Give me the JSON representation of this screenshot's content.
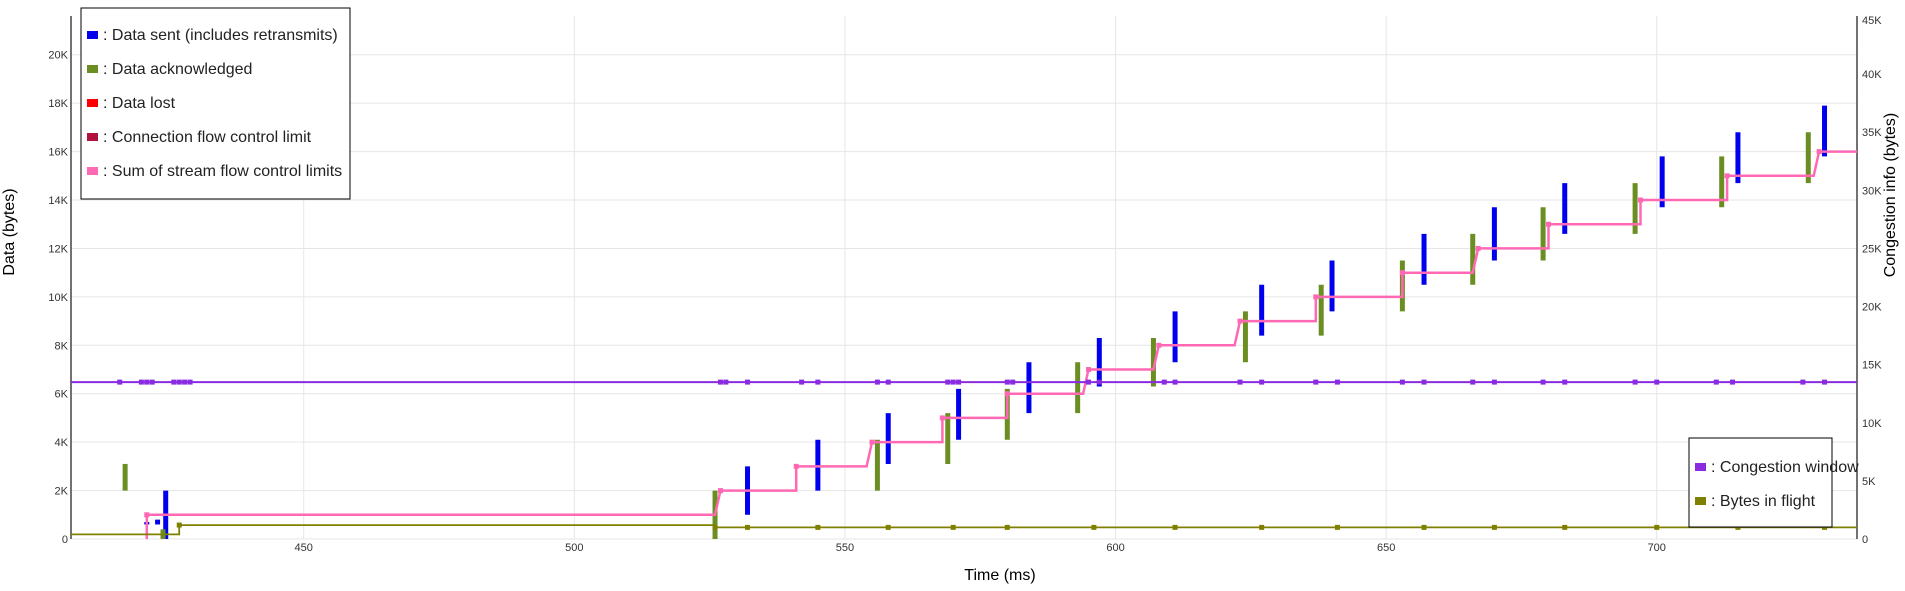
{
  "chart_data": {
    "type": "scatter",
    "xlabel": "Time (ms)",
    "ylabel": "Data (bytes)",
    "y2label": "Congestion info (bytes)",
    "xlim": [
      407,
      737
    ],
    "ylim": [
      0,
      21600
    ],
    "y2lim": [
      0,
      45000
    ],
    "x_ticks": [
      450,
      500,
      550,
      600,
      650,
      700
    ],
    "y_ticks": [
      0,
      2000,
      4000,
      6000,
      8000,
      10000,
      12000,
      14000,
      16000,
      18000,
      20000
    ],
    "y_tick_labels": [
      "0",
      "2K",
      "4K",
      "6K",
      "8K",
      "10K",
      "12K",
      "14K",
      "16K",
      "18K",
      "20K"
    ],
    "y2_ticks": [
      0,
      5000,
      10000,
      15000,
      20000,
      25000,
      30000,
      35000,
      40000,
      45000
    ],
    "y2_tick_labels": [
      "0",
      "5K",
      "10K",
      "15K",
      "20K",
      "25K",
      "30K",
      "35K",
      "40K",
      "45K"
    ],
    "grid": true,
    "legend": {
      "placement": "top-left",
      "entries": [
        {
          "label": ": Data sent (includes retransmits)",
          "color": "#0000ee"
        },
        {
          "label": ": Data acknowledged",
          "color": "#6b8e23"
        },
        {
          "label": ": Data lost",
          "color": "#ff0000"
        },
        {
          "label": ": Connection flow control limit",
          "color": "#b0143c"
        },
        {
          "label": ": Sum of stream flow control limits",
          "color": "#ff69b4"
        }
      ]
    },
    "legend2": {
      "placement": "bottom-right",
      "entries": [
        {
          "label": ": Congestion window",
          "color": "#8a2be2"
        },
        {
          "label": ": Bytes in flight",
          "color": "#808000"
        }
      ]
    },
    "series": [
      {
        "name": ": Data sent (includes retransmits)",
        "axis": "left",
        "color": "#0000ee",
        "style": "segments",
        "points": [
          [
            421,
            600,
            700
          ],
          [
            423,
            600,
            800
          ],
          [
            424.5,
            0,
            2000
          ],
          [
            532,
            1000,
            3000
          ],
          [
            545,
            2000,
            4100
          ],
          [
            558,
            3100,
            5200
          ],
          [
            571,
            4100,
            6200
          ],
          [
            584,
            5200,
            7300
          ],
          [
            597,
            6300,
            8300
          ],
          [
            611,
            7300,
            9400
          ],
          [
            627,
            8400,
            10500
          ],
          [
            640,
            9400,
            11500
          ],
          [
            657,
            10500,
            12600
          ],
          [
            670,
            11500,
            13700
          ],
          [
            683,
            12600,
            14700
          ],
          [
            701,
            13700,
            15800
          ],
          [
            715,
            14700,
            16800
          ],
          [
            731,
            15800,
            17900
          ]
        ]
      },
      {
        "name": ": Data acknowledged",
        "axis": "left",
        "color": "#6b8e23",
        "style": "segments",
        "points": [
          [
            417,
            2000,
            3100
          ],
          [
            424,
            0,
            400
          ],
          [
            526,
            0,
            2000
          ],
          [
            556,
            2000,
            4100
          ],
          [
            569,
            3100,
            5200
          ],
          [
            580,
            4100,
            6200
          ],
          [
            593,
            5200,
            7300
          ],
          [
            607,
            6300,
            8300
          ],
          [
            624,
            7300,
            9400
          ],
          [
            638,
            8400,
            10500
          ],
          [
            653,
            9400,
            11500
          ],
          [
            666,
            10500,
            12600
          ],
          [
            679,
            11500,
            13700
          ],
          [
            696,
            12600,
            14700
          ],
          [
            712,
            13700,
            15800
          ],
          [
            728,
            14700,
            16800
          ]
        ]
      },
      {
        "name": ": Sum of stream flow control limits",
        "axis": "left",
        "color": "#ff69b4",
        "style": "step",
        "points": [
          [
            421,
            0
          ],
          [
            421,
            1000
          ],
          [
            526,
            1000
          ],
          [
            527,
            2000
          ],
          [
            541,
            2000
          ],
          [
            541,
            3000
          ],
          [
            554,
            3000
          ],
          [
            555,
            4000
          ],
          [
            568,
            4000
          ],
          [
            568,
            5000
          ],
          [
            580,
            5000
          ],
          [
            580,
            6000
          ],
          [
            594,
            6000
          ],
          [
            595,
            7000
          ],
          [
            607,
            7000
          ],
          [
            608,
            8000
          ],
          [
            622,
            8000
          ],
          [
            623,
            9000
          ],
          [
            637,
            9000
          ],
          [
            637,
            10000
          ],
          [
            653,
            10000
          ],
          [
            653,
            11000
          ],
          [
            666,
            11000
          ],
          [
            667,
            12000
          ],
          [
            680,
            12000
          ],
          [
            680,
            13000
          ],
          [
            697,
            13000
          ],
          [
            697,
            14000
          ],
          [
            713,
            14000
          ],
          [
            713,
            15000
          ],
          [
            729,
            15000
          ],
          [
            730,
            16000
          ],
          [
            737,
            16000
          ]
        ]
      },
      {
        "name": ": Congestion window",
        "axis": "right",
        "color": "#8a2be2",
        "style": "line_markers",
        "markers": [
          416,
          420,
          421,
          422,
          426,
          427,
          428,
          429,
          527,
          528,
          532,
          542,
          545,
          556,
          558,
          569,
          570,
          571,
          580,
          581,
          595,
          597,
          609,
          611,
          623,
          627,
          637,
          641,
          653,
          657,
          666,
          670,
          679,
          683,
          696,
          700,
          711,
          714,
          727,
          731
        ],
        "points": [
          [
            407,
            13500
          ],
          [
            737,
            13500
          ]
        ]
      },
      {
        "name": ": Bytes in flight",
        "axis": "right",
        "color": "#808000",
        "style": "line_markers",
        "markers": [
          427,
          526,
          532,
          545,
          558,
          570,
          580,
          596,
          611,
          627,
          641,
          657,
          670,
          683,
          700,
          715,
          731
        ],
        "points": [
          [
            407,
            400
          ],
          [
            427,
            400
          ],
          [
            427,
            1200
          ],
          [
            526,
            1200
          ],
          [
            526,
            1000
          ],
          [
            737,
            1000
          ]
        ]
      }
    ]
  }
}
